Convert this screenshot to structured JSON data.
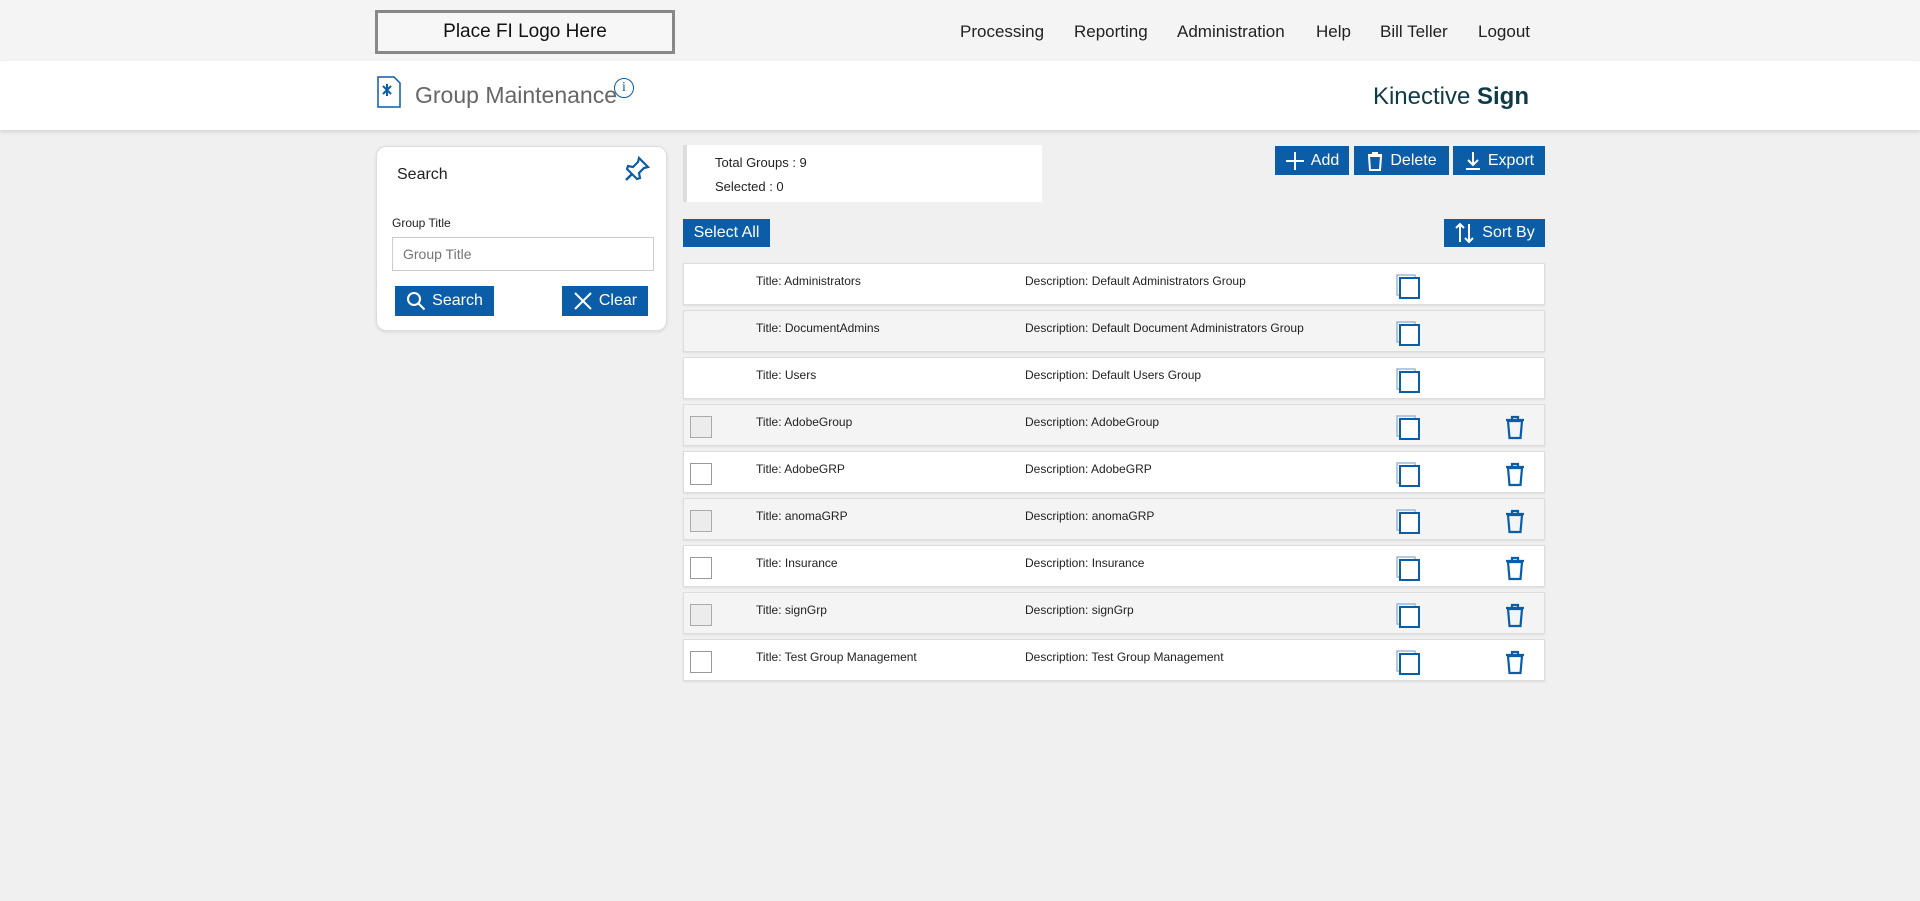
{
  "topbar": {
    "logo": "Place FI Logo Here",
    "nav": [
      "Processing",
      "Reporting",
      "Administration",
      "Help",
      "Bill Teller",
      "Logout"
    ]
  },
  "header": {
    "title": "Group Maintenance",
    "brand_light": "Kinective ",
    "brand_bold": "Sign"
  },
  "search": {
    "heading": "Search",
    "field_label": "Group Title",
    "placeholder": "Group Title",
    "value": "",
    "search_label": "Search",
    "clear_label": "Clear"
  },
  "summary": {
    "total": "Total Groups : 9",
    "selected": "Selected : 0"
  },
  "toolbar": {
    "add": "Add",
    "delete": "Delete",
    "export": "Export",
    "select_all": "Select All",
    "sort_by": "Sort By"
  },
  "colors": {
    "accent": "#0b5da8"
  },
  "groups": [
    {
      "title": "Title:  Administrators",
      "desc": "Description: Default Administrators Group",
      "deletable": false
    },
    {
      "title": "Title:  DocumentAdmins",
      "desc": "Description: Default Document Administrators Group",
      "deletable": false
    },
    {
      "title": "Title:  Users",
      "desc": "Description: Default Users Group",
      "deletable": false
    },
    {
      "title": "Title:  AdobeGroup",
      "desc": "Description: AdobeGroup",
      "deletable": true
    },
    {
      "title": "Title:  AdobeGRP",
      "desc": "Description: AdobeGRP",
      "deletable": true
    },
    {
      "title": "Title:  anomaGRP",
      "desc": "Description: anomaGRP",
      "deletable": true
    },
    {
      "title": "Title:  Insurance",
      "desc": "Description: Insurance",
      "deletable": true
    },
    {
      "title": "Title:  signGrp",
      "desc": "Description: signGrp",
      "deletable": true
    },
    {
      "title": "Title:  Test Group Management",
      "desc": "Description: Test Group Management",
      "deletable": true
    }
  ]
}
